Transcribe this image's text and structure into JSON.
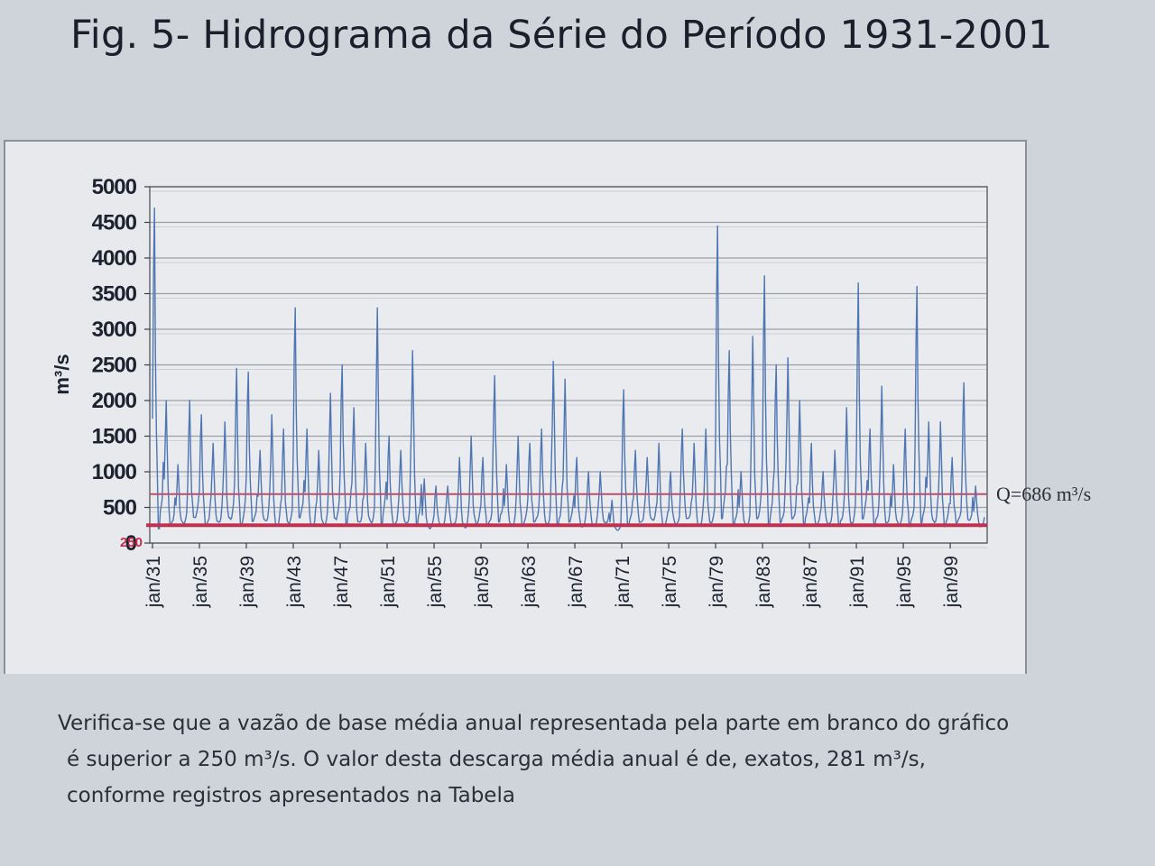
{
  "title": "Fig. 5- Hidrograma da Série do Período 1931-2001",
  "caption": {
    "line1": "Verifica-se que a vazão de base média anual representada pela parte em branco do gráfico",
    "line2": "é superior a 250 m³/s. O valor desta descarga média anual é de, exatos, 281 m³/s,",
    "line3": "conforme registros apresentados na Tabela"
  },
  "colors": {
    "series": "#4f76b3",
    "mean_line": "#b8506a",
    "base_line": "#c0304f",
    "grid": "#9aa0a8"
  },
  "chart_data": {
    "type": "line",
    "ylabel": "m³/s",
    "ylim": [
      0,
      5000
    ],
    "yticks": [
      0,
      500,
      1000,
      1500,
      2000,
      2500,
      3000,
      3500,
      4000,
      4500,
      5000
    ],
    "ytick_labels": [
      "0",
      "500",
      "1000",
      "1500",
      "2000",
      "2500",
      "3000",
      "3500",
      "4000",
      "4500",
      "5000"
    ],
    "base_flow_label": "250",
    "x_tick_labels": [
      "jan/31",
      "jan/35",
      "jan/39",
      "jan/43",
      "jan/47",
      "jan/51",
      "jan/55",
      "jan/59",
      "jan/63",
      "jan/67",
      "jan/71",
      "jan/75",
      "jan/79",
      "jan/83",
      "jan/87",
      "jan/91",
      "jan/95",
      "jan/99"
    ],
    "x_range": [
      "jan/31",
      "dez/01"
    ],
    "grid": true,
    "series": [
      {
        "frequency": "monthly",
        "start": "jan/31",
        "annual_peaks": [
          {
            "year": 1931,
            "peak": 4700
          },
          {
            "year": 1932,
            "peak": 2000
          },
          {
            "year": 1933,
            "peak": 1100
          },
          {
            "year": 1934,
            "peak": 2000
          },
          {
            "year": 1935,
            "peak": 1800
          },
          {
            "year": 1936,
            "peak": 1400
          },
          {
            "year": 1937,
            "peak": 1700
          },
          {
            "year": 1938,
            "peak": 2450
          },
          {
            "year": 1939,
            "peak": 2400
          },
          {
            "year": 1940,
            "peak": 1300
          },
          {
            "year": 1941,
            "peak": 1800
          },
          {
            "year": 1942,
            "peak": 1600
          },
          {
            "year": 1943,
            "peak": 3300
          },
          {
            "year": 1944,
            "peak": 1600
          },
          {
            "year": 1945,
            "peak": 1300
          },
          {
            "year": 1946,
            "peak": 2100
          },
          {
            "year": 1947,
            "peak": 2500
          },
          {
            "year": 1948,
            "peak": 1900
          },
          {
            "year": 1949,
            "peak": 1400
          },
          {
            "year": 1950,
            "peak": 3300
          },
          {
            "year": 1951,
            "peak": 1500
          },
          {
            "year": 1952,
            "peak": 1300
          },
          {
            "year": 1953,
            "peak": 2700
          },
          {
            "year": 1954,
            "peak": 900
          },
          {
            "year": 1955,
            "peak": 800
          },
          {
            "year": 1956,
            "peak": 800
          },
          {
            "year": 1957,
            "peak": 1200
          },
          {
            "year": 1958,
            "peak": 1500
          },
          {
            "year": 1959,
            "peak": 1200
          },
          {
            "year": 1960,
            "peak": 2350
          },
          {
            "year": 1961,
            "peak": 1100
          },
          {
            "year": 1962,
            "peak": 1500
          },
          {
            "year": 1963,
            "peak": 1400
          },
          {
            "year": 1964,
            "peak": 1600
          },
          {
            "year": 1965,
            "peak": 2550
          },
          {
            "year": 1966,
            "peak": 2300
          },
          {
            "year": 1967,
            "peak": 1200
          },
          {
            "year": 1968,
            "peak": 1000
          },
          {
            "year": 1969,
            "peak": 1000
          },
          {
            "year": 1970,
            "peak": 600
          },
          {
            "year": 1971,
            "peak": 2150
          },
          {
            "year": 1972,
            "peak": 1300
          },
          {
            "year": 1973,
            "peak": 1200
          },
          {
            "year": 1974,
            "peak": 1400
          },
          {
            "year": 1975,
            "peak": 1000
          },
          {
            "year": 1976,
            "peak": 1600
          },
          {
            "year": 1977,
            "peak": 1400
          },
          {
            "year": 1978,
            "peak": 1600
          },
          {
            "year": 1979,
            "peak": 4450
          },
          {
            "year": 1980,
            "peak": 2700
          },
          {
            "year": 1981,
            "peak": 1000
          },
          {
            "year": 1982,
            "peak": 2900
          },
          {
            "year": 1983,
            "peak": 3750
          },
          {
            "year": 1984,
            "peak": 2500
          },
          {
            "year": 1985,
            "peak": 2600
          },
          {
            "year": 1986,
            "peak": 2000
          },
          {
            "year": 1987,
            "peak": 1400
          },
          {
            "year": 1988,
            "peak": 1000
          },
          {
            "year": 1989,
            "peak": 1300
          },
          {
            "year": 1990,
            "peak": 1900
          },
          {
            "year": 1991,
            "peak": 3650
          },
          {
            "year": 1992,
            "peak": 1600
          },
          {
            "year": 1993,
            "peak": 2200
          },
          {
            "year": 1994,
            "peak": 1100
          },
          {
            "year": 1995,
            "peak": 1600
          },
          {
            "year": 1996,
            "peak": 3600
          },
          {
            "year": 1997,
            "peak": 1700
          },
          {
            "year": 1998,
            "peak": 1700
          },
          {
            "year": 1999,
            "peak": 1200
          },
          {
            "year": 2000,
            "peak": 2250
          },
          {
            "year": 2001,
            "peak": 800
          }
        ]
      }
    ],
    "reference_lines": [
      {
        "value": 686,
        "label": "Q=686 m³/s"
      },
      {
        "value": 250,
        "label": "250"
      }
    ]
  }
}
